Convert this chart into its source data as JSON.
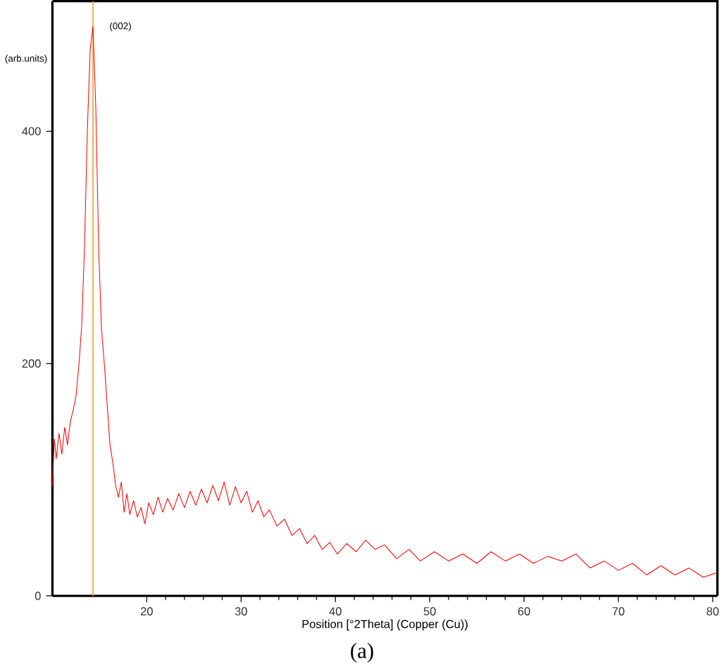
{
  "chart_data": {
    "type": "line",
    "xlabel": "Position [°2Theta] (Copper (Cu))",
    "ylabel": "(arb.units)",
    "annotations": [
      {
        "text": "(002)",
        "x": 14.3,
        "y": 490
      },
      "(a)"
    ],
    "xlim": [
      10,
      80.5
    ],
    "ylim": [
      0,
      512
    ],
    "xticks": [
      20,
      30,
      40,
      50,
      60,
      70,
      80
    ],
    "yticks": [
      0,
      200,
      400
    ],
    "marker": "none",
    "line_style": "solid",
    "ref_lines": [
      {
        "axis": "x",
        "value": 14.3,
        "color": "#f0a030"
      }
    ],
    "series": [
      {
        "color": "#ff0000",
        "x": [
          10,
          10.2,
          10.4,
          10.7,
          11,
          11.3,
          11.6,
          11.9,
          12.2,
          12.5,
          12.8,
          13.1,
          13.4,
          13.7,
          14.0,
          14.3,
          14.6,
          14.9,
          15.2,
          15.5,
          15.8,
          16.1,
          16.4,
          16.7,
          17.0,
          17.3,
          17.6,
          17.9,
          18.2,
          18.6,
          19.0,
          19.4,
          19.8,
          20.2,
          20.7,
          21.2,
          21.7,
          22.2,
          22.8,
          23.4,
          24.0,
          24.6,
          25.2,
          25.8,
          26.4,
          27.0,
          27.6,
          28.2,
          28.8,
          29.4,
          30.0,
          30.6,
          31.2,
          31.8,
          32.4,
          33.0,
          33.8,
          34.6,
          35.4,
          36.2,
          37.0,
          37.8,
          38.6,
          39.4,
          40.2,
          41.2,
          42.2,
          43.2,
          44.2,
          45.2,
          46.5,
          47.8,
          49.0,
          50.5,
          52.0,
          53.5,
          55.0,
          56.5,
          58.0,
          59.5,
          61.0,
          62.5,
          64.0,
          65.5,
          67.0,
          68.5,
          70.0,
          71.5,
          73.0,
          74.5,
          76.0,
          77.5,
          79.0,
          80.5
        ],
        "values": [
          95,
          135,
          118,
          140,
          122,
          145,
          130,
          150,
          160,
          172,
          198,
          232,
          300,
          400,
          470,
          490,
          420,
          300,
          230,
          200,
          165,
          130,
          115,
          95,
          85,
          98,
          72,
          88,
          70,
          82,
          68,
          76,
          62,
          80,
          70,
          85,
          72,
          84,
          74,
          88,
          76,
          90,
          78,
          92,
          80,
          95,
          82,
          98,
          78,
          94,
          80,
          90,
          72,
          82,
          68,
          74,
          60,
          66,
          52,
          58,
          45,
          52,
          40,
          46,
          36,
          45,
          38,
          48,
          40,
          44,
          32,
          40,
          30,
          38,
          30,
          36,
          28,
          38,
          30,
          36,
          28,
          34,
          30,
          36,
          24,
          30,
          22,
          28,
          18,
          26,
          18,
          24,
          16,
          20
        ]
      }
    ]
  }
}
